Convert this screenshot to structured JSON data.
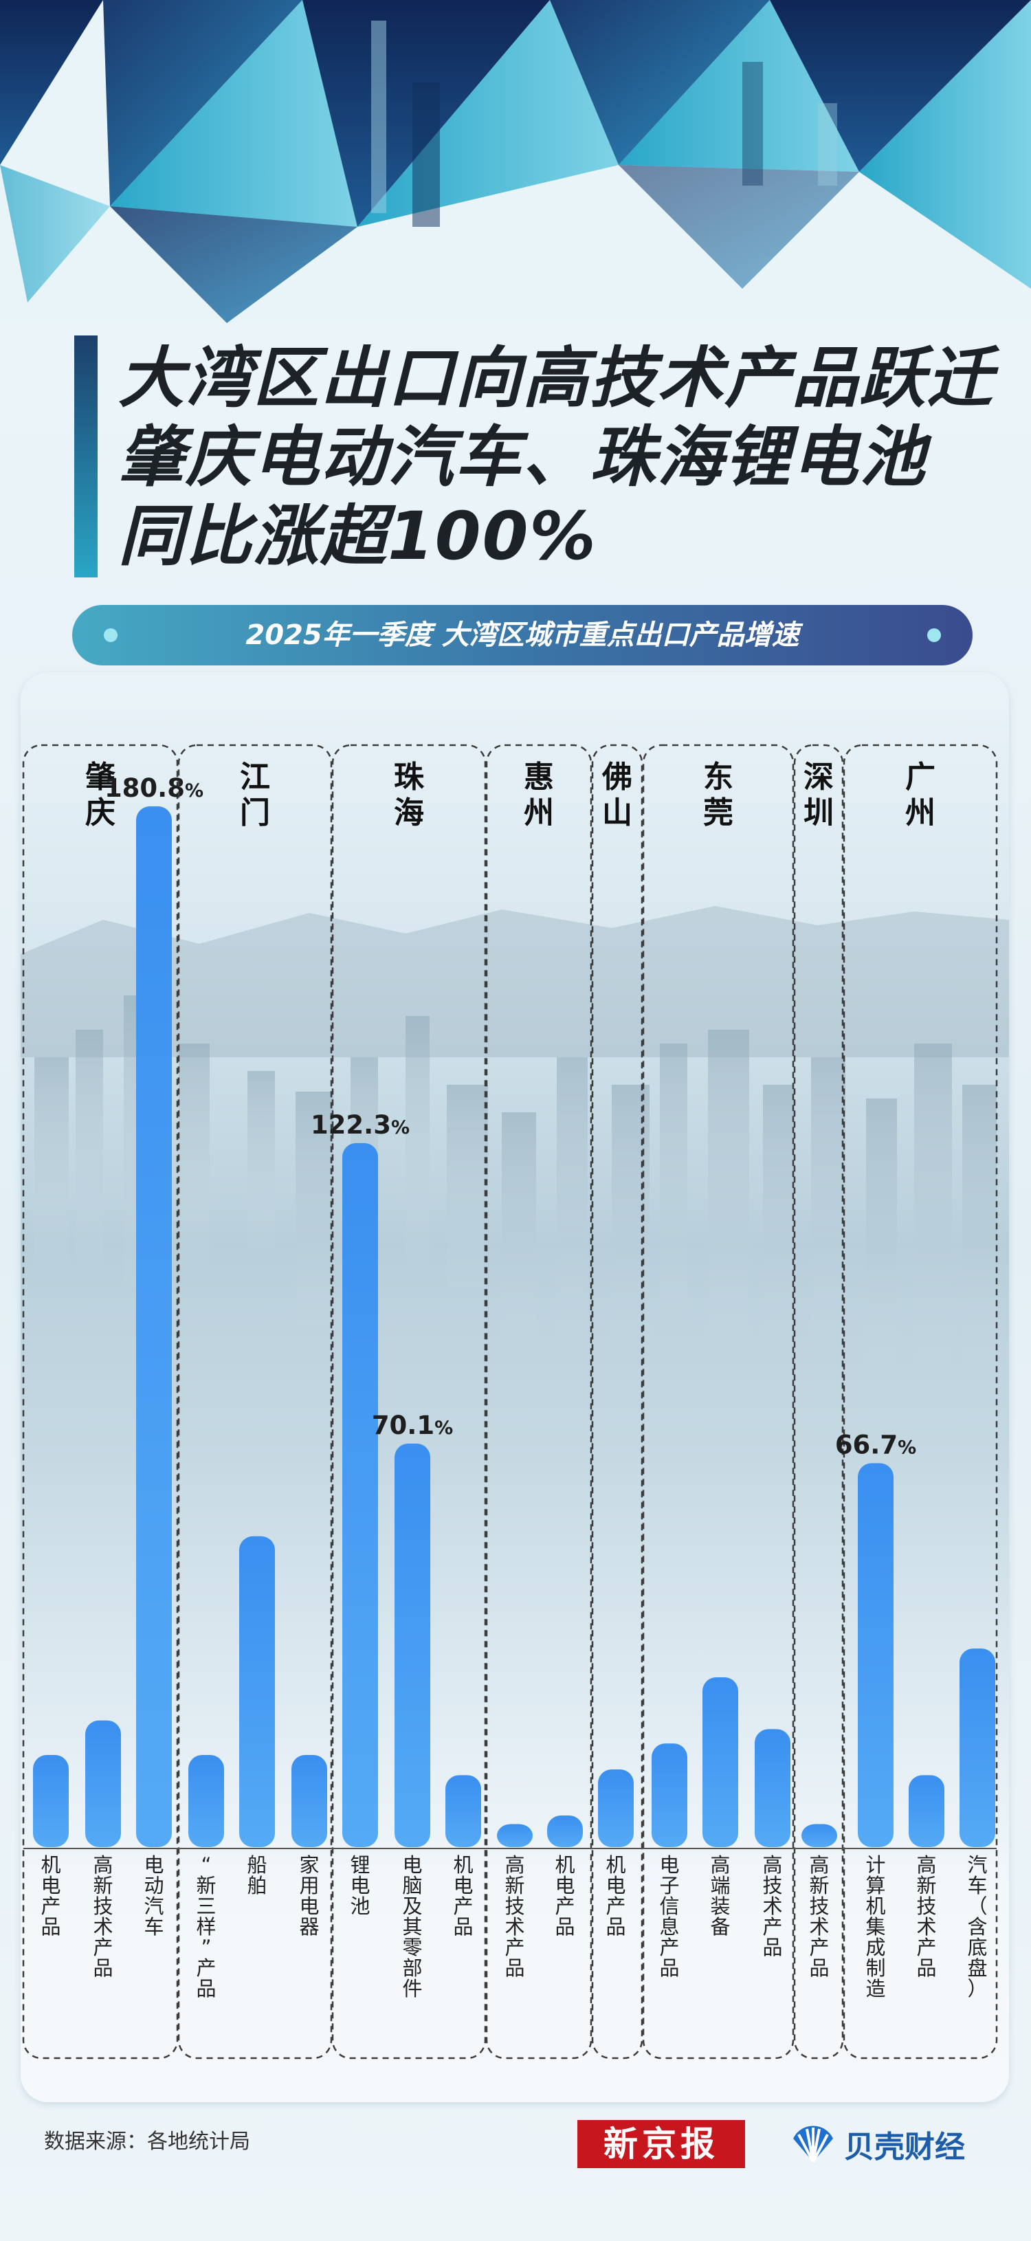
{
  "title": {
    "lines": [
      "大湾区出口向高技术产品跃迁",
      "肇庆电动汽车、珠海锂电池",
      "同比涨超100%"
    ]
  },
  "subtitle": "2025年一季度 大湾区城市重点出口产品增速",
  "source": "数据来源：各地统计局",
  "brands": {
    "xinjingbao": "新京报",
    "beike": "贝壳财经"
  },
  "colors": {
    "bar_top": "#3a8ff0",
    "bar_bottom": "#55aaf5",
    "accent_dark": "#1b3f6b",
    "accent_teal": "#2aa6c6",
    "logo_red": "#c8161e",
    "logo_blue": "#1d5ca8"
  },
  "chart_data": {
    "type": "bar",
    "unit": "%",
    "groups": [
      {
        "city": "肇庆",
        "bars": [
          {
            "label": "机电产品",
            "value": 16
          },
          {
            "label": "高新技术产品",
            "value": 22
          },
          {
            "label": "电动汽车",
            "value": 180.8,
            "shown": "180.8"
          }
        ]
      },
      {
        "city": "江门",
        "bars": [
          {
            "label": "“新三样”产品",
            "value": 16
          },
          {
            "label": "船舶",
            "value": 54
          },
          {
            "label": "家用电器",
            "value": 16
          }
        ]
      },
      {
        "city": "珠海",
        "bars": [
          {
            "label": "锂电池",
            "value": 122.3,
            "shown": "122.3"
          },
          {
            "label": "电脑及其零部件",
            "value": 70.1,
            "shown": "70.1"
          },
          {
            "label": "机电产品",
            "value": 12.5
          }
        ]
      },
      {
        "city": "惠州",
        "bars": [
          {
            "label": "高新技术产品",
            "value": 4
          },
          {
            "label": "机电产品",
            "value": 5.5
          }
        ]
      },
      {
        "city": "佛山",
        "bars": [
          {
            "label": "机电产品",
            "value": 13.5
          }
        ]
      },
      {
        "city": "东莞",
        "bars": [
          {
            "label": "电子信息产品",
            "value": 18
          },
          {
            "label": "高端装备",
            "value": 29.5
          },
          {
            "label": "高技术产品",
            "value": 20.5
          }
        ]
      },
      {
        "city": "深圳",
        "bars": [
          {
            "label": "高新技术产品",
            "value": 4
          }
        ]
      },
      {
        "city": "广州",
        "bars": [
          {
            "label": "计算机集成制造",
            "value": 66.7,
            "shown": "66.7"
          },
          {
            "label": "高新技术产品",
            "value": 12.5
          },
          {
            "label": "汽车（含底盘）",
            "value": 34.5
          }
        ]
      }
    ]
  }
}
